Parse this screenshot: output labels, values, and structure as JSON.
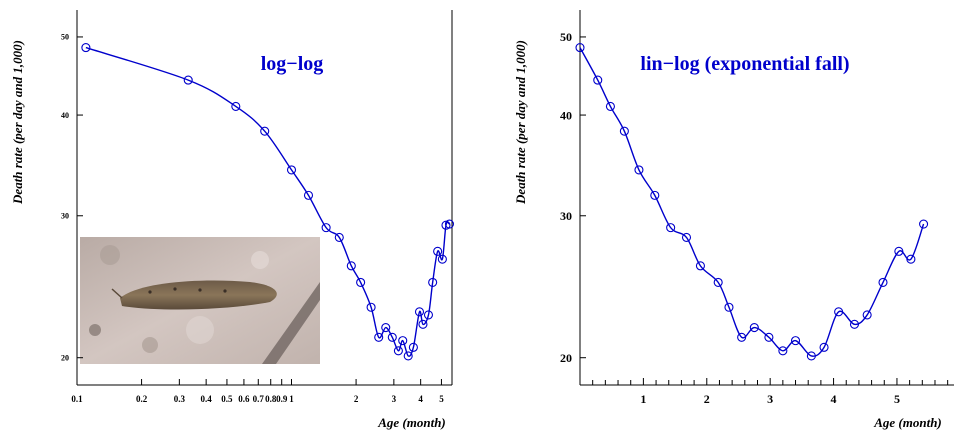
{
  "colors": {
    "series": "#0000cc",
    "axis": "#000000",
    "background": "#ffffff"
  },
  "chart_data": [
    {
      "type": "line",
      "title": "log−log",
      "xlabel": "Age (month)",
      "ylabel": "Death rate (per day and 1,000)",
      "xscale": "log",
      "yscale": "log",
      "xlim": [
        0.1,
        5.6
      ],
      "ylim": [
        18.5,
        54
      ],
      "xticks": [
        0.1,
        0.2,
        0.3,
        0.4,
        0.5,
        0.6,
        0.7,
        0.8,
        0.9,
        1,
        2,
        3,
        4,
        5
      ],
      "xtick_labels": [
        "0.1",
        "0.2",
        "0.3",
        "0.4",
        "0.5",
        "0.6",
        "0.7",
        "0.8",
        "0.9",
        "1",
        "2",
        "3",
        "4",
        "5"
      ],
      "yticks": [
        20,
        30,
        40,
        50
      ],
      "ytick_labels": [
        "20",
        "30",
        "40",
        "50"
      ],
      "inset_image": "slug-photo",
      "series": [
        {
          "x": [
            0.11,
            0.33,
            0.55,
            0.75,
            1.0,
            1.2,
            1.45,
            1.67,
            1.9,
            2.1,
            2.35,
            2.55,
            2.75,
            2.95,
            3.15,
            3.3,
            3.5,
            3.7,
            3.95,
            4.1,
            4.35,
            4.55,
            4.8,
            5.05,
            5.25,
            5.45
          ],
          "y": [
            48.5,
            44.2,
            41.0,
            38.2,
            34.2,
            31.8,
            29.0,
            28.2,
            26.0,
            24.8,
            23.1,
            21.2,
            21.8,
            21.2,
            20.4,
            21.0,
            20.1,
            20.6,
            22.8,
            22.0,
            22.6,
            24.8,
            27.1,
            26.5,
            29.2,
            29.3
          ]
        }
      ]
    },
    {
      "type": "line",
      "title": "lin−log (exponential fall)",
      "xlabel": "Age (month)",
      "ylabel": "Death rate (per day and 1,000)",
      "xscale": "linear",
      "yscale": "log",
      "xlim": [
        0.0,
        5.9
      ],
      "ylim": [
        18.5,
        54
      ],
      "xticks": [
        1,
        2,
        3,
        4,
        5
      ],
      "xtick_labels": [
        "1",
        "2",
        "3",
        "4",
        "5"
      ],
      "yticks": [
        20,
        30,
        40,
        50
      ],
      "ytick_labels": [
        "20",
        "30",
        "40",
        "50"
      ],
      "series": [
        {
          "x": [
            0.0,
            0.28,
            0.48,
            0.7,
            0.93,
            1.18,
            1.43,
            1.68,
            1.9,
            2.18,
            2.35,
            2.55,
            2.75,
            2.98,
            3.2,
            3.4,
            3.65,
            3.85,
            4.08,
            4.33,
            4.53,
            4.78,
            5.03,
            5.22,
            5.42
          ],
          "y": [
            48.5,
            44.2,
            41.0,
            38.2,
            34.2,
            31.8,
            29.0,
            28.2,
            26.0,
            24.8,
            23.1,
            21.2,
            21.8,
            21.2,
            20.4,
            21.0,
            20.1,
            20.6,
            22.8,
            22.0,
            22.6,
            24.8,
            27.1,
            26.5,
            29.3
          ]
        }
      ]
    }
  ]
}
